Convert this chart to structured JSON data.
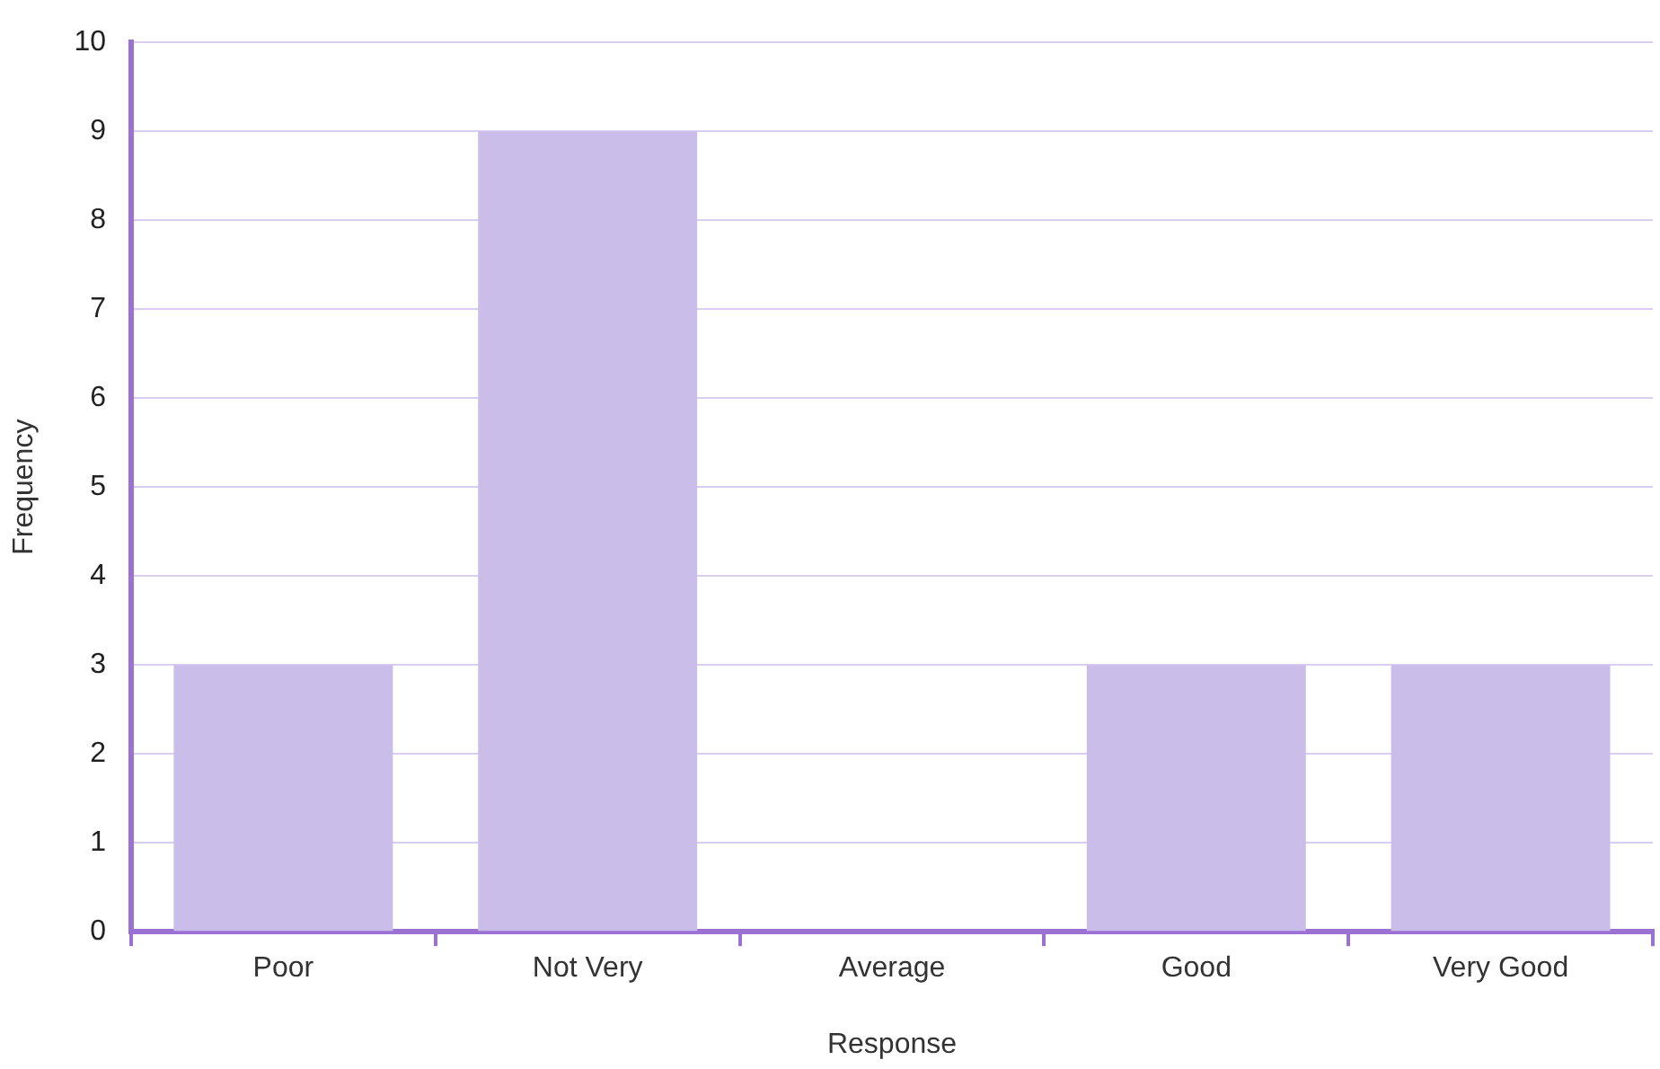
{
  "chart_data": {
    "type": "bar",
    "xlabel": "Response",
    "ylabel": "Frequency",
    "categories": [
      "Poor",
      "Not Very",
      "Average",
      "Good",
      "Very Good"
    ],
    "values": [
      3,
      9,
      0,
      3,
      3
    ],
    "color": "#cbbde9",
    "ylim": [
      0,
      10
    ],
    "yticks": [
      0,
      1,
      2,
      3,
      4,
      5,
      6,
      7,
      8,
      9,
      10
    ],
    "grid": "y",
    "legend": false
  }
}
